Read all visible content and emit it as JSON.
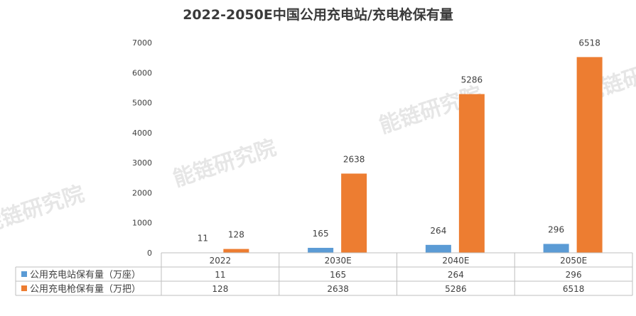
{
  "title": "2022-2050E中国公用充电站/充电枪保有量",
  "watermark": "能链研究院",
  "chart_data": {
    "type": "bar",
    "title": "2022-2050E中国公用充电站/充电枪保有量",
    "categories": [
      "2022",
      "2030E",
      "2040E",
      "2050E"
    ],
    "series": [
      {
        "name": "公用充电站保有量（万座）",
        "values": [
          11,
          165,
          264,
          296
        ],
        "color": "#5b9bd5"
      },
      {
        "name": "公用充电枪保有量（万把）",
        "values": [
          128,
          2638,
          5286,
          6518
        ],
        "color": "#ed7d31"
      }
    ],
    "yticks": [
      "0",
      "1000",
      "2000",
      "3000",
      "4000",
      "5000",
      "6000",
      "7000"
    ],
    "ylim": [
      0,
      7000
    ],
    "data_table": true,
    "gridlines": false
  }
}
